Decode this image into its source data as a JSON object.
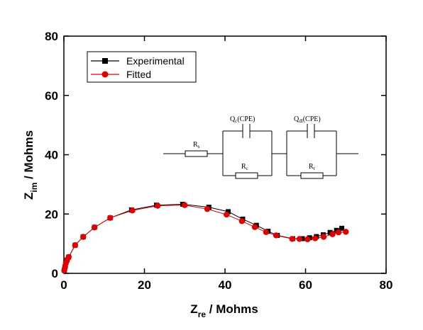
{
  "chart_data": {
    "type": "scatter",
    "x_axis": {
      "label_main": "Z",
      "label_sub": "re",
      "label_unit": " / Mohms",
      "ticks": [
        "0",
        "20",
        "40",
        "60",
        "80"
      ],
      "range": [
        0,
        80
      ]
    },
    "y_axis": {
      "label_main": "Z",
      "label_sub": "im",
      "label_unit": " / Mohms",
      "ticks": [
        "0",
        "20",
        "40",
        "60",
        "80"
      ],
      "range": [
        0,
        80
      ]
    },
    "legend_placement": "top-left",
    "series": [
      {
        "name": "Experimental",
        "color": "#000000",
        "marker": "square",
        "x": [
          0.1,
          0.3,
          0.5,
          0.8,
          1.2,
          2.8,
          4.8,
          7.6,
          11.5,
          16.8,
          23.0,
          29.5,
          36.0,
          40.8,
          44.4,
          47.8,
          50.7,
          53.0,
          56.8,
          59.2,
          61.0,
          62.7,
          64.4,
          66.1,
          67.7,
          69.0
        ],
        "y": [
          1.0,
          2.2,
          3.5,
          4.5,
          5.5,
          9.5,
          12.3,
          15.5,
          18.7,
          21.4,
          23.0,
          23.3,
          22.3,
          20.8,
          18.3,
          16.2,
          14.2,
          12.8,
          11.7,
          11.7,
          12.0,
          12.4,
          13.0,
          13.8,
          14.5,
          15.2
        ]
      },
      {
        "name": "Fitted",
        "color": "#e00000",
        "marker": "circle",
        "x": [
          0.1,
          0.3,
          0.5,
          0.8,
          1.2,
          2.8,
          4.8,
          7.6,
          11.5,
          17.0,
          23.3,
          30.0,
          35.6,
          40.4,
          44.2,
          47.4,
          50.2,
          52.7,
          56.7,
          58.5,
          60.5,
          62.4,
          64.5,
          66.7,
          68.2,
          70.0
        ],
        "y": [
          1.0,
          2.2,
          3.5,
          4.5,
          5.5,
          9.5,
          12.3,
          15.5,
          18.7,
          21.2,
          22.8,
          23.0,
          21.7,
          19.8,
          17.6,
          15.6,
          13.9,
          12.8,
          11.6,
          11.6,
          11.5,
          11.8,
          12.3,
          13.2,
          13.8,
          14.0
        ]
      }
    ],
    "circuit": {
      "rs_label": "R",
      "rs_sub": "s",
      "qc_label": "Q",
      "qc_sub": "c",
      "qc_suffix": "(CPE)",
      "rc_label": "R",
      "rc_sub": "c",
      "qdl_label": "Q",
      "qdl_sub": "dl",
      "qdl_suffix": "(CPE)",
      "rt_label": "R",
      "rt_sub": "t"
    }
  }
}
